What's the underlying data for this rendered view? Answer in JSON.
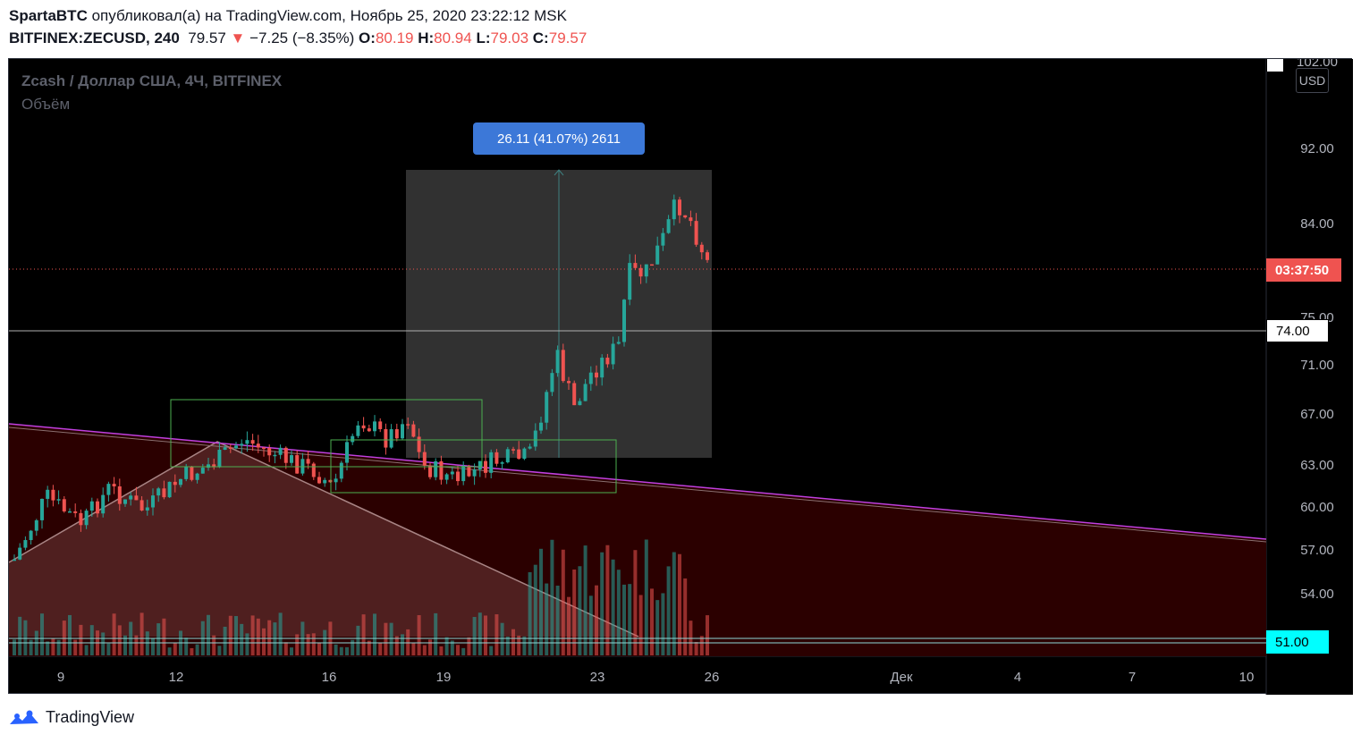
{
  "header": {
    "author": "SpartaBTC",
    "published_text": "опубликовал(а) на TradingView.com, Ноябрь 25, 2020 23:22:12 MSK",
    "symbol": "BITFINEX:ZECUSD, 240",
    "last_price": "79.57",
    "change_arrow": "▼",
    "change": "−7.25 (−8.35%)",
    "o_label": "O:",
    "o_value": "80.19",
    "h_label": "H:",
    "h_value": "80.94",
    "l_label": "L:",
    "l_value": "79.03",
    "c_label": "C:",
    "c_value": "79.57"
  },
  "legend": {
    "title": "Zcash / Доллар США, 4Ч, BITFINEX",
    "volume": "Объём"
  },
  "measure": {
    "label": "26.11 (41.07%) 2611"
  },
  "price_axis": {
    "currency_button": "USD",
    "ticks": [
      "102.00",
      "92.00",
      "84.00",
      "75.00",
      "71.00",
      "67.00",
      "63.00",
      "60.00",
      "57.00",
      "54.00"
    ],
    "tag_countdown": "03:37:50",
    "tag_74": "74.00",
    "tag_51": "51.00"
  },
  "time_axis": {
    "ticks": [
      "9",
      "12",
      "16",
      "19",
      "23",
      "26",
      "Дек",
      "4",
      "7",
      "10"
    ]
  },
  "colors": {
    "up": "#26a69a",
    "down": "#ef5350",
    "triangle": "#5c2a2a",
    "wedge_fill": "#2b0000",
    "purple_line": "#c040e0",
    "green_box": "#4caf50",
    "cyan_tag": "#00ffff"
  },
  "footer": {
    "brand": "TradingView"
  }
}
